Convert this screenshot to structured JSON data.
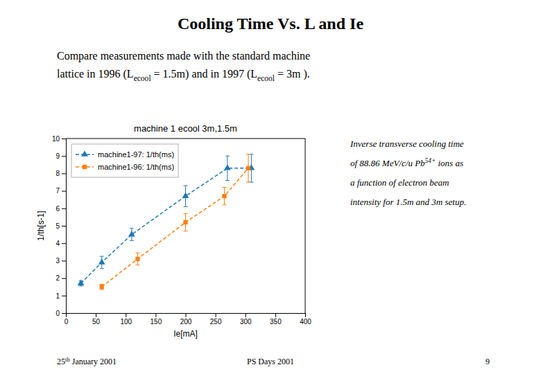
{
  "title": "Cooling Time Vs. L and Ie",
  "subtitle": [
    "Compare measurements made with the standard machine",
    [
      "lattice in 1996 (L",
      "ecool",
      " = 1.5m) and in 1997 (L",
      "ecool",
      " = 3m )."
    ]
  ],
  "annotations": [
    "Inverse transverse cooling time",
    [
      "of 88.86 MeV/c/u Pb",
      "54+",
      " ions as"
    ],
    "a function of electron beam",
    "intensity for 1.5m and 3m setup."
  ],
  "footer": [
    [
      "25",
      "th",
      " January 2001"
    ],
    "PS Days 2001",
    "9"
  ],
  "chart_data": {
    "type": "line",
    "title": "machine 1 ecool 3m,1.5m",
    "xlabel": "Ie[mA]",
    "ylabel": "1/th[s-1]",
    "xlim": [
      0,
      400
    ],
    "ylim": [
      0,
      10
    ],
    "xticks": [
      0,
      50,
      100,
      150,
      200,
      250,
      300,
      350,
      400
    ],
    "yticks": [
      0,
      1,
      2,
      3,
      4,
      5,
      6,
      7,
      8,
      9,
      10
    ],
    "grid": false,
    "legend": "upper left",
    "series": [
      {
        "name": "machine1-97: 1/th(ms)",
        "marker": "triangle",
        "line_style": "dashed",
        "x": [
          25,
          60,
          110,
          200,
          270,
          310
        ],
        "values": [
          1.7,
          2.9,
          4.5,
          6.7,
          8.3,
          8.3
        ],
        "yerr": [
          0.15,
          0.35,
          0.35,
          0.6,
          0.7,
          0.8
        ]
      },
      {
        "name": "machine1-96: 1/th(ms)",
        "marker": "square",
        "line_style": "dashed",
        "x": [
          60,
          120,
          200,
          265,
          305
        ],
        "values": [
          1.5,
          3.1,
          5.2,
          6.7,
          8.3
        ],
        "yerr": [
          0.15,
          0.35,
          0.5,
          0.5,
          0.8
        ]
      }
    ]
  }
}
